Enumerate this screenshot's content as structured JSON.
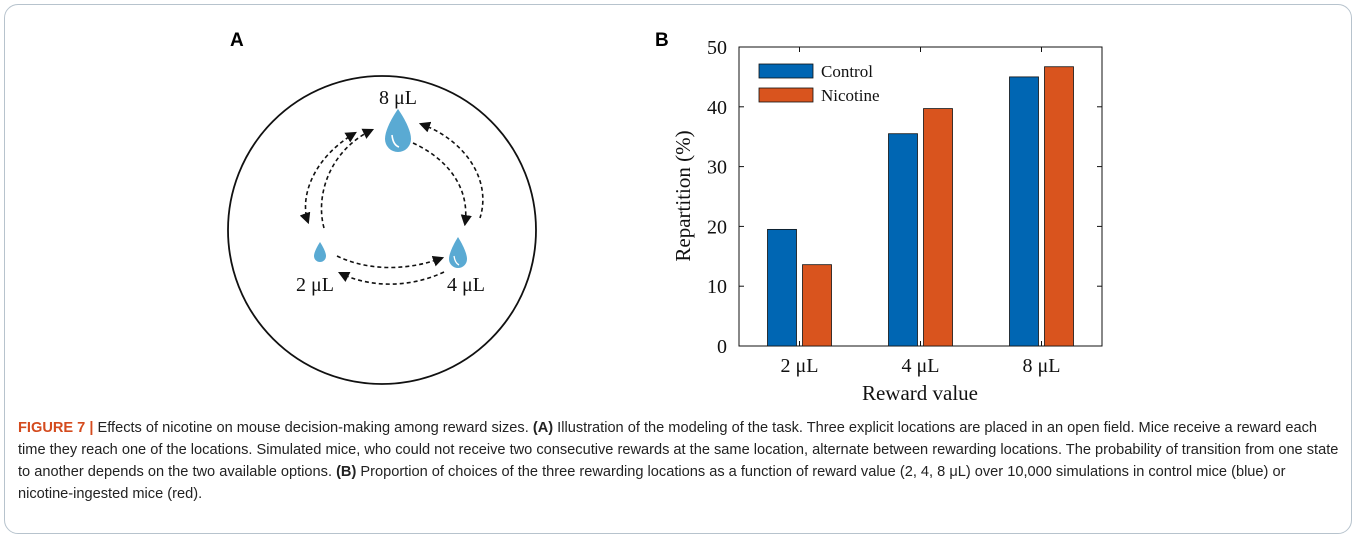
{
  "panel_a": {
    "letter": "A",
    "drops": [
      {
        "label": "8 μL"
      },
      {
        "label": "2 μL"
      },
      {
        "label": "4 μL"
      }
    ]
  },
  "panel_b": {
    "letter": "B"
  },
  "colors": {
    "control": "#0066b3",
    "nicotine": "#d9541e",
    "caption_label": "#d44b1e",
    "drop": "#5aaad3"
  },
  "chart_data": {
    "type": "bar",
    "categories": [
      "2 μL",
      "4 μL",
      "8 μL"
    ],
    "series": [
      {
        "name": "Control",
        "values": [
          19.5,
          35.5,
          45.0
        ]
      },
      {
        "name": "Nicotine",
        "values": [
          13.6,
          39.7,
          46.7
        ]
      }
    ],
    "xlabel": "Reward value",
    "ylabel": "Repartition (%)",
    "ylim": [
      0,
      50
    ],
    "yticks": [
      0,
      10,
      20,
      30,
      40,
      50
    ],
    "legend_position": "top-left"
  },
  "caption": {
    "figure_label": "FIGURE 7 |",
    "intro": " Effects of nicotine on mouse decision-making among reward sizes. ",
    "part_a_label": "(A)",
    "part_a_text": " Illustration of the modeling of the task. Three explicit locations are placed in an open field. Mice receive a reward each time they reach one of the locations. Simulated mice, who could not receive two consecutive rewards at the same location, alternate between rewarding locations. The probability of transition from one state to another depends on the two available options. ",
    "part_b_label": "(B)",
    "part_b_text": " Proportion of choices of the three rewarding locations as a function of reward value (2, 4, 8 μL) over 10,000 simulations in control mice (blue) or nicotine-ingested mice (red)."
  }
}
